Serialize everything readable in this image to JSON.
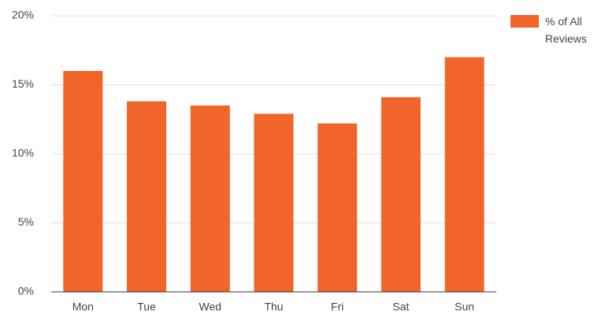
{
  "chart_data": {
    "type": "bar",
    "categories": [
      "Mon",
      "Tue",
      "Wed",
      "Thu",
      "Fri",
      "Sat",
      "Sun"
    ],
    "series": [
      {
        "name": "% of All Reviews",
        "color": "#f1652a",
        "values": [
          16.0,
          13.8,
          13.5,
          12.9,
          12.2,
          14.1,
          17.0
        ]
      }
    ],
    "ylim": [
      0,
      20
    ],
    "yticks": [
      {
        "value": 0,
        "label": "0%"
      },
      {
        "value": 5,
        "label": "5%"
      },
      {
        "value": 10,
        "label": "10%"
      },
      {
        "value": 15,
        "label": "15%"
      },
      {
        "value": 20,
        "label": "20%"
      }
    ],
    "grid": true,
    "legend": "right"
  }
}
